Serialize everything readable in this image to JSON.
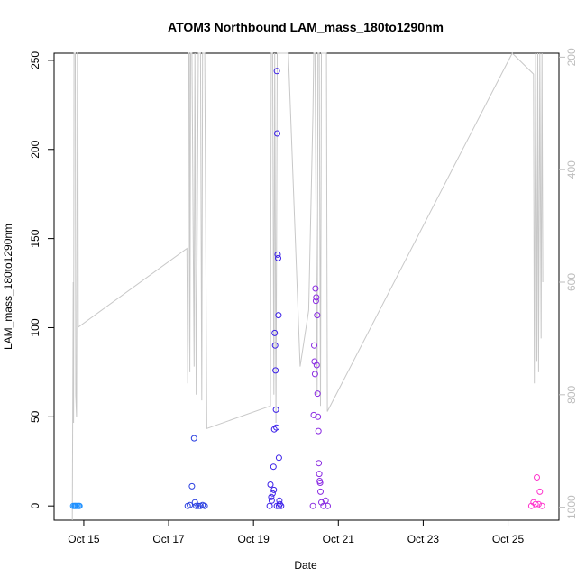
{
  "chart_data": {
    "type": "scatter",
    "title": "ATOM3 Northbound LAM_mass_180to1290nm",
    "xlabel": "Date",
    "ylabel": "LAM_mass_180to1290nm",
    "x_tick_labels": [
      "Oct 15",
      "Oct 17",
      "Oct 19",
      "Oct 21",
      "Oct 23",
      "Oct 25"
    ],
    "x_tick_values": [
      15,
      17,
      19,
      21,
      23,
      25
    ],
    "xlim": [
      14.3,
      26.2
    ],
    "ylim": [
      -8,
      254
    ],
    "y_ticks": [
      0,
      50,
      100,
      150,
      200,
      250
    ],
    "y2_ticks": [
      200,
      400,
      600,
      800,
      1000
    ],
    "y2lim": [
      1023,
      193
    ],
    "grid": false,
    "colors": {
      "oct15": "#1e90ff",
      "oct17": "#2a3fe0",
      "oct19": "#3a1fe8",
      "oct20": "#8a2be2",
      "oct25": "#ff33cc",
      "altitude_line": "#c8c8c8"
    },
    "series": [
      {
        "color": "#1e90ff",
        "points": [
          [
            14.75,
            0
          ],
          [
            14.78,
            0
          ],
          [
            14.8,
            0
          ],
          [
            14.82,
            0
          ],
          [
            14.85,
            0
          ],
          [
            14.88,
            0
          ],
          [
            14.9,
            0
          ]
        ]
      },
      {
        "color": "#2a3fe0",
        "points": [
          [
            17.45,
            0
          ],
          [
            17.5,
            0.5
          ],
          [
            17.55,
            11
          ],
          [
            17.6,
            38
          ],
          [
            17.62,
            2
          ],
          [
            17.65,
            0
          ],
          [
            17.7,
            0
          ],
          [
            17.75,
            0
          ],
          [
            17.8,
            0.5
          ],
          [
            17.85,
            0
          ]
        ]
      },
      {
        "color": "#3a1fe8",
        "points": [
          [
            19.38,
            0
          ],
          [
            19.4,
            12
          ],
          [
            19.42,
            5
          ],
          [
            19.43,
            3
          ],
          [
            19.45,
            7
          ],
          [
            19.47,
            22
          ],
          [
            19.48,
            9
          ],
          [
            19.49,
            43
          ],
          [
            19.5,
            97
          ],
          [
            19.51,
            90
          ],
          [
            19.52,
            76
          ],
          [
            19.53,
            54
          ],
          [
            19.54,
            44
          ],
          [
            19.55,
            244
          ],
          [
            19.56,
            209
          ],
          [
            19.57,
            141
          ],
          [
            19.58,
            139
          ],
          [
            19.59,
            107
          ],
          [
            19.6,
            27
          ],
          [
            19.61,
            3
          ],
          [
            19.62,
            1
          ],
          [
            19.55,
            0
          ],
          [
            19.6,
            0
          ],
          [
            19.65,
            0
          ]
        ]
      },
      {
        "color": "#8a2be2",
        "points": [
          [
            20.4,
            0
          ],
          [
            20.42,
            51
          ],
          [
            20.43,
            90
          ],
          [
            20.44,
            81
          ],
          [
            20.45,
            74
          ],
          [
            20.46,
            122
          ],
          [
            20.47,
            115
          ],
          [
            20.48,
            117
          ],
          [
            20.49,
            79
          ],
          [
            20.5,
            107
          ],
          [
            20.51,
            63
          ],
          [
            20.52,
            50
          ],
          [
            20.53,
            42
          ],
          [
            20.54,
            24
          ],
          [
            20.55,
            18
          ],
          [
            20.56,
            14
          ],
          [
            20.57,
            13
          ],
          [
            20.58,
            8
          ],
          [
            20.6,
            2
          ],
          [
            20.65,
            0
          ],
          [
            20.7,
            3
          ],
          [
            20.75,
            0
          ]
        ]
      },
      {
        "color": "#ff33cc",
        "points": [
          [
            25.55,
            0
          ],
          [
            25.6,
            2
          ],
          [
            25.65,
            1
          ],
          [
            25.68,
            16
          ],
          [
            25.72,
            1
          ],
          [
            25.75,
            8
          ],
          [
            25.8,
            0
          ]
        ]
      }
    ],
    "altitude_line": [
      [
        14.73,
        1023
      ],
      [
        14.75,
        600
      ],
      [
        14.76,
        850
      ],
      [
        14.77,
        193
      ],
      [
        14.78,
        193
      ],
      [
        14.8,
        193
      ],
      [
        14.81,
        800
      ],
      [
        14.83,
        840
      ],
      [
        14.85,
        193
      ],
      [
        14.86,
        193
      ],
      [
        14.87,
        680
      ],
      [
        17.43,
        540
      ],
      [
        17.45,
        780
      ],
      [
        17.46,
        700
      ],
      [
        17.47,
        193
      ],
      [
        17.49,
        193
      ],
      [
        17.5,
        760
      ],
      [
        17.52,
        193
      ],
      [
        17.55,
        193
      ],
      [
        17.6,
        750
      ],
      [
        17.62,
        193
      ],
      [
        17.65,
        800
      ],
      [
        17.7,
        193
      ],
      [
        17.75,
        193
      ],
      [
        17.78,
        810
      ],
      [
        17.8,
        193
      ],
      [
        17.85,
        193
      ],
      [
        17.9,
        860
      ],
      [
        19.4,
        820
      ],
      [
        19.42,
        193
      ],
      [
        19.45,
        193
      ],
      [
        19.48,
        800
      ],
      [
        19.5,
        193
      ],
      [
        19.53,
        850
      ],
      [
        19.56,
        193
      ],
      [
        19.6,
        193
      ],
      [
        19.65,
        193
      ],
      [
        19.7,
        193
      ],
      [
        19.75,
        193
      ],
      [
        19.8,
        193
      ],
      [
        19.82,
        193
      ],
      [
        20.1,
        750
      ],
      [
        20.3,
        650
      ],
      [
        20.4,
        300
      ],
      [
        20.42,
        193
      ],
      [
        20.45,
        193
      ],
      [
        20.5,
        800
      ],
      [
        20.52,
        193
      ],
      [
        20.55,
        193
      ],
      [
        20.58,
        820
      ],
      [
        20.6,
        193
      ],
      [
        20.62,
        193
      ],
      [
        20.65,
        193
      ],
      [
        20.7,
        193
      ],
      [
        20.72,
        193
      ],
      [
        20.74,
        830
      ],
      [
        25.1,
        193
      ],
      [
        25.6,
        230
      ],
      [
        25.62,
        780
      ],
      [
        25.65,
        193
      ],
      [
        25.68,
        740
      ],
      [
        25.7,
        193
      ],
      [
        25.72,
        760
      ],
      [
        25.75,
        193
      ],
      [
        25.78,
        700
      ],
      [
        25.8,
        193
      ],
      [
        25.82,
        600
      ]
    ]
  }
}
